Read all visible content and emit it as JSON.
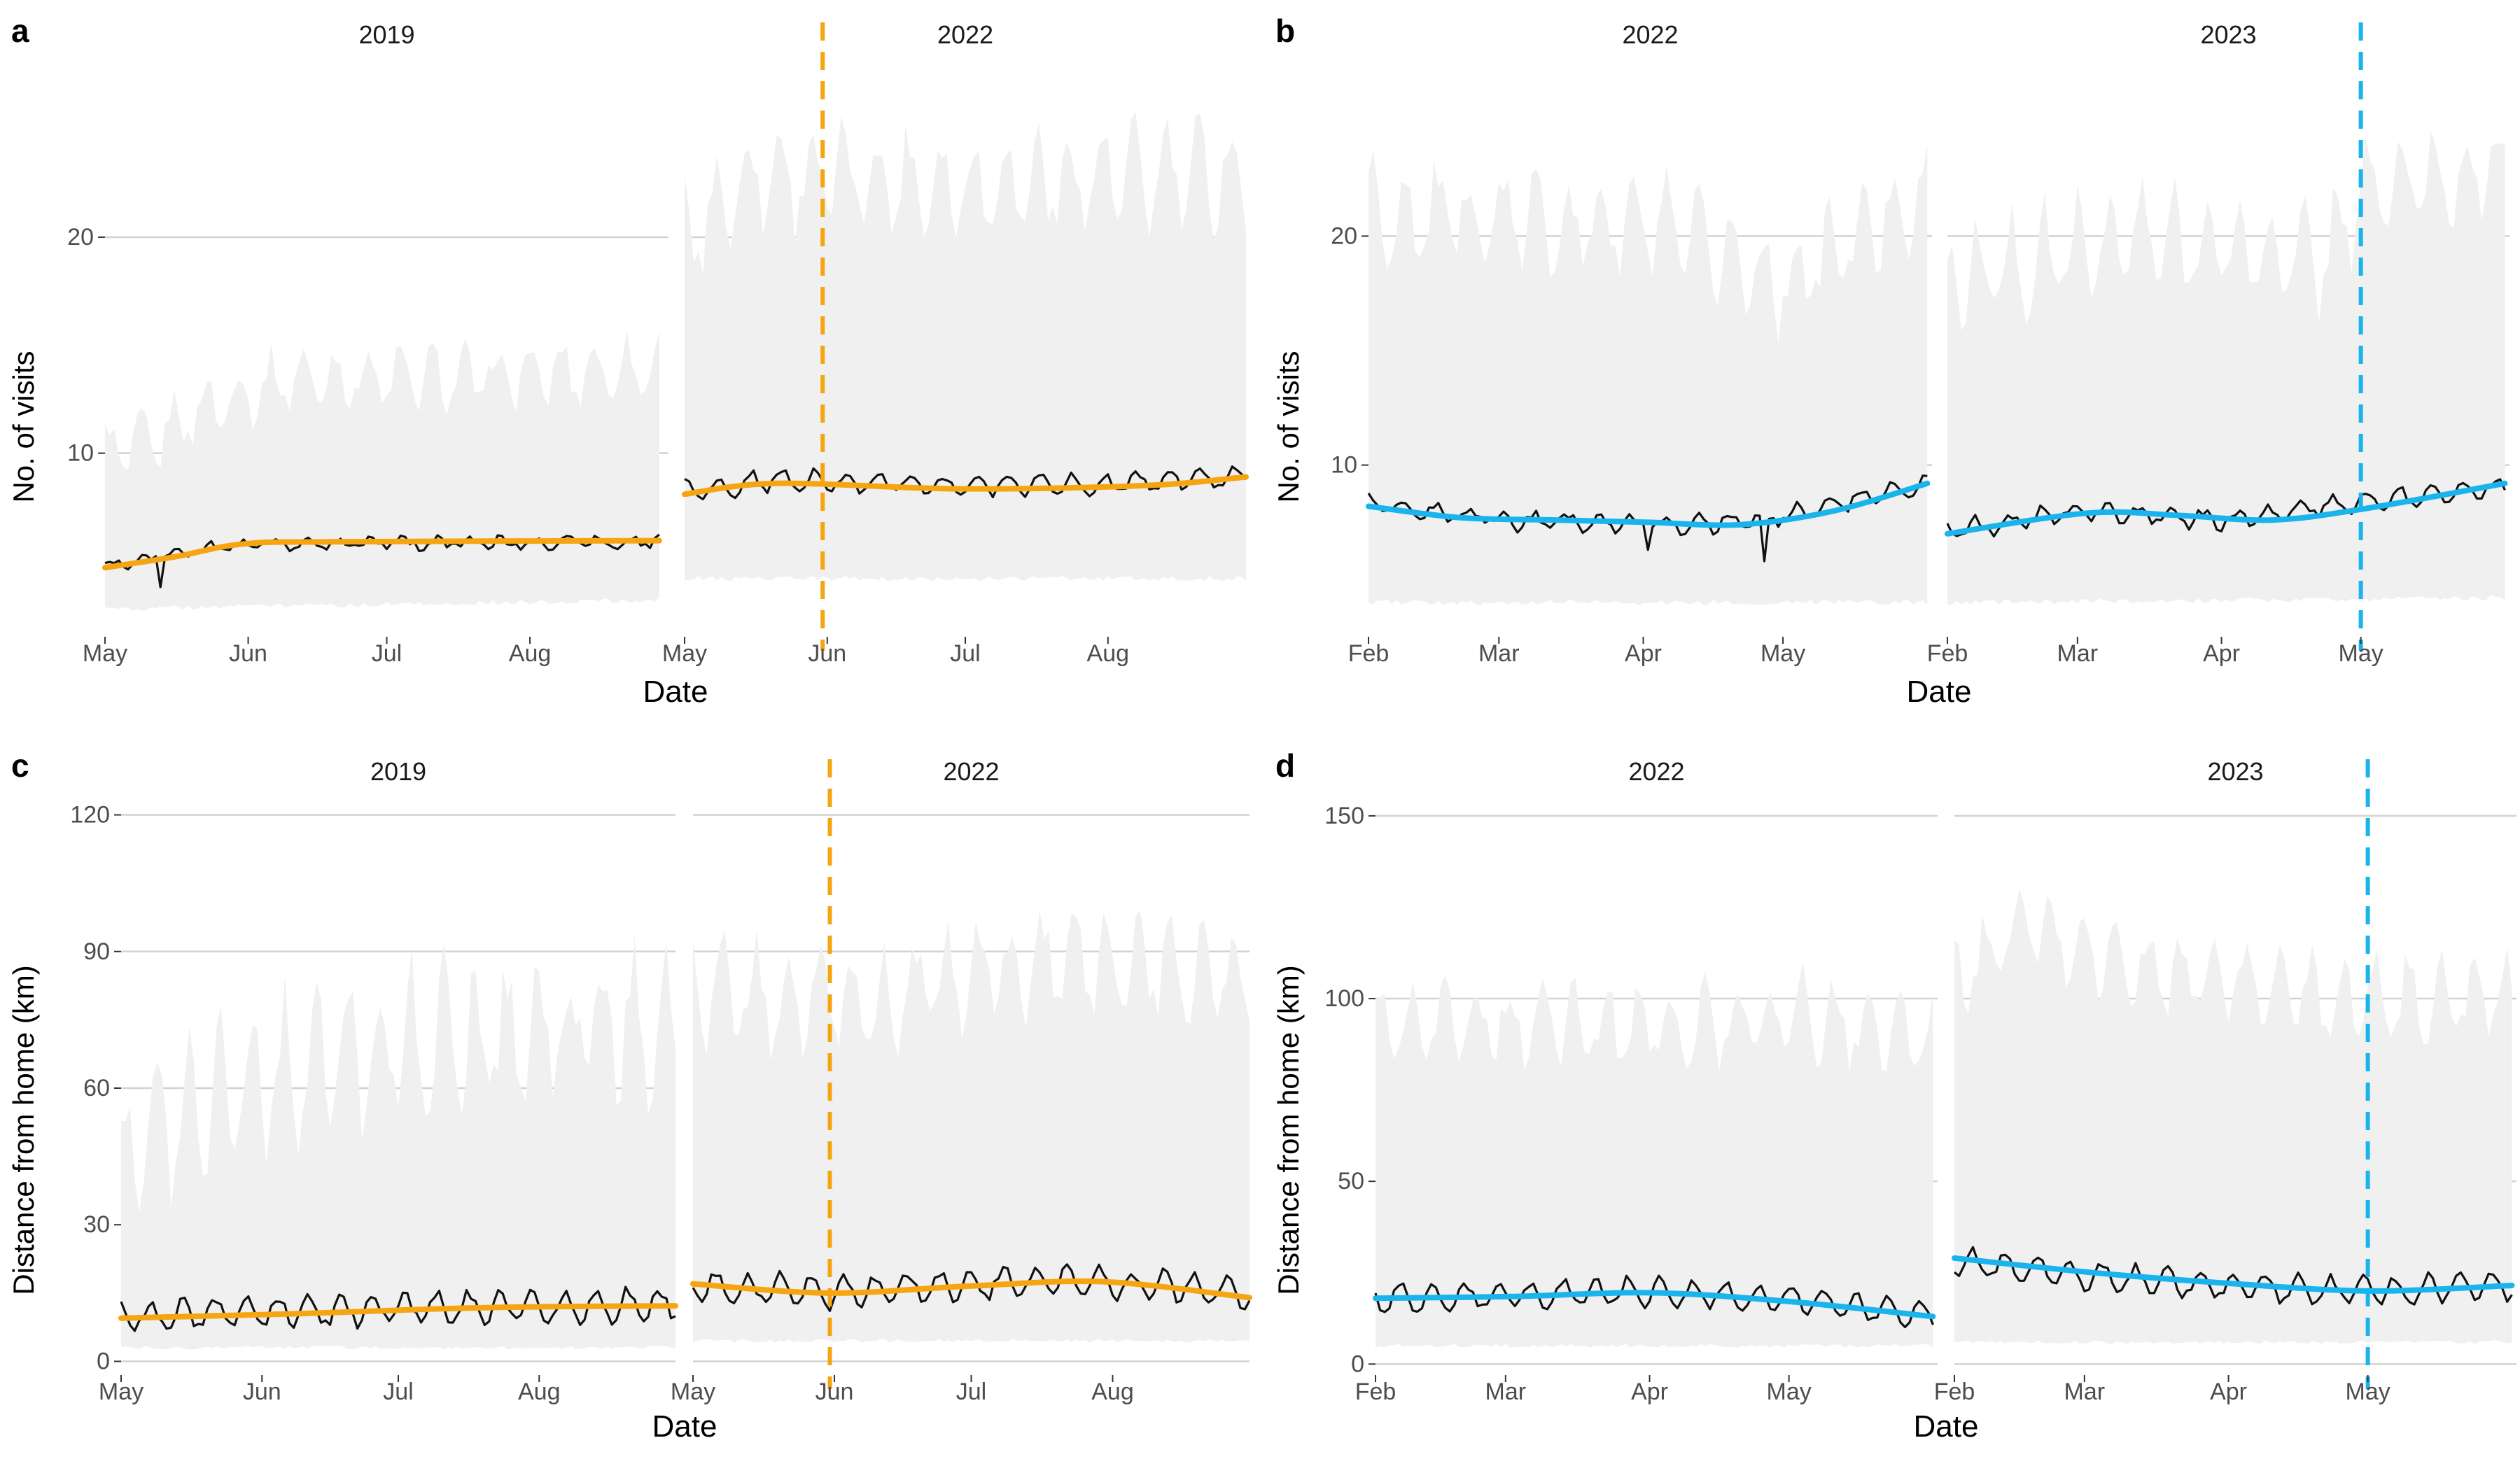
{
  "colors": {
    "orange": "#f5a511",
    "blue": "#1ab4ec",
    "band": "#f0f0f0",
    "grid": "#d2d2d2",
    "observed": "#111111",
    "axis_text": "#4d4d4d"
  },
  "chart_data": [
    {
      "panel_label": "a",
      "type": "line",
      "ylabel": "No. of visits",
      "xlabel": "Date",
      "ylim": [
        1.5,
        28
      ],
      "yticks": [
        10,
        20
      ],
      "grid": "horizontal major",
      "trend_color": "orange",
      "facets": [
        {
          "title": "2019",
          "xlim": [
            0,
            122
          ],
          "xticks": [
            {
              "label": "May",
              "x": 0
            },
            {
              "label": "Jun",
              "x": 31
            },
            {
              "label": "Jul",
              "x": 61
            },
            {
              "label": "Aug",
              "x": 92
            }
          ],
          "observed_series": {
            "start": 0,
            "end": 120,
            "base": [
              [
                0,
                4.8
              ],
              [
                30,
                5.8
              ],
              [
                120,
                5.9
              ]
            ],
            "amplitude": 0.22,
            "period": 7,
            "noise": 0.18,
            "dips": [
              [
                12,
                3.8
              ]
            ]
          },
          "trend": [
            [
              0,
              4.7
            ],
            [
              15,
              5.2
            ],
            [
              30,
              5.8
            ],
            [
              50,
              5.9
            ],
            [
              120,
              5.95
            ]
          ],
          "band_upper": {
            "base": [
              [
                0,
                10
              ],
              [
                10,
                10.5
              ],
              [
                20,
                12
              ],
              [
                40,
                13.5
              ],
              [
                80,
                13.5
              ],
              [
                120,
                14
              ]
            ],
            "amplitude": 1.3
          },
          "band_lower": {
            "base": [
              [
                0,
                2.8
              ],
              [
                120,
                3.2
              ]
            ],
            "amplitude": 0.12
          }
        },
        {
          "title": "2022",
          "xlim": [
            0,
            122
          ],
          "xticks": [
            {
              "label": "May",
              "x": 0
            },
            {
              "label": "Jun",
              "x": 31
            },
            {
              "label": "Jul",
              "x": 61
            },
            {
              "label": "Aug",
              "x": 92
            }
          ],
          "vline": 30,
          "observed_series": {
            "start": 0,
            "end": 122,
            "base": [
              [
                0,
                8.2
              ],
              [
                20,
                8.8
              ],
              [
                60,
                8.5
              ],
              [
                100,
                8.6
              ],
              [
                122,
                9.0
              ]
            ],
            "amplitude": 0.45,
            "period": 7,
            "noise": 0.2
          },
          "trend": [
            [
              0,
              8.1
            ],
            [
              20,
              8.6
            ],
            [
              60,
              8.35
            ],
            [
              100,
              8.5
            ],
            [
              122,
              8.9
            ]
          ],
          "band_upper": {
            "base": [
              [
                0,
                20
              ],
              [
                15,
                23
              ],
              [
                60,
                22.5
              ],
              [
                122,
                23
              ]
            ],
            "amplitude": 2.2
          },
          "band_lower": {
            "base": [
              [
                0,
                4.2
              ],
              [
                122,
                4.2
              ]
            ],
            "amplitude": 0.12
          }
        }
      ]
    },
    {
      "panel_label": "b",
      "type": "line",
      "ylabel": "No. of visits",
      "xlabel": "Date",
      "ylim": [
        2.5,
        27.5
      ],
      "yticks": [
        10,
        20
      ],
      "grid": "horizontal major",
      "trend_color": "blue",
      "facets": [
        {
          "title": "2022",
          "xlim": [
            0,
            121
          ],
          "xticks": [
            {
              "label": "Feb",
              "x": 0
            },
            {
              "label": "Mar",
              "x": 28
            },
            {
              "label": "Apr",
              "x": 59
            },
            {
              "label": "May",
              "x": 89
            }
          ],
          "observed_series": {
            "start": 0,
            "end": 120,
            "base": [
              [
                0,
                8.3
              ],
              [
                30,
                7.6
              ],
              [
                70,
                7.4
              ],
              [
                90,
                7.8
              ],
              [
                120,
                9.2
              ]
            ],
            "amplitude": 0.35,
            "period": 7,
            "noise": 0.2,
            "dips": [
              [
                60,
                6.3
              ],
              [
                85,
                5.8
              ]
            ]
          },
          "trend": [
            [
              0,
              8.2
            ],
            [
              20,
              7.7
            ],
            [
              40,
              7.6
            ],
            [
              60,
              7.5
            ],
            [
              80,
              7.4
            ],
            [
              100,
              8.0
            ],
            [
              120,
              9.2
            ]
          ],
          "band_upper": {
            "base": [
              [
                0,
                21
              ],
              [
                60,
                20.5
              ],
              [
                90,
                18
              ],
              [
                120,
                22
              ]
            ],
            "amplitude": 2.0
          },
          "band_lower": {
            "base": [
              [
                0,
                4.0
              ],
              [
                121,
                4.0
              ]
            ],
            "amplitude": 0.12
          }
        },
        {
          "title": "2023",
          "xlim": [
            0,
            121
          ],
          "xticks": [
            {
              "label": "Feb",
              "x": 0
            },
            {
              "label": "Mar",
              "x": 28
            },
            {
              "label": "Apr",
              "x": 59
            },
            {
              "label": "May",
              "x": 89
            }
          ],
          "vline": 89,
          "observed_series": {
            "start": 0,
            "end": 120,
            "base": [
              [
                0,
                7.1
              ],
              [
                30,
                8.0
              ],
              [
                60,
                7.6
              ],
              [
                90,
                8.4
              ],
              [
                120,
                9.1
              ]
            ],
            "amplitude": 0.35,
            "period": 7,
            "noise": 0.2
          },
          "trend": [
            [
              0,
              7.0
            ],
            [
              30,
              7.9
            ],
            [
              50,
              7.8
            ],
            [
              70,
              7.6
            ],
            [
              90,
              8.1
            ],
            [
              120,
              9.2
            ]
          ],
          "band_upper": {
            "base": [
              [
                0,
                18
              ],
              [
                40,
                20
              ],
              [
                80,
                19
              ],
              [
                90,
                22
              ],
              [
                120,
                23
              ]
            ],
            "amplitude": 2.0
          },
          "band_lower": {
            "base": [
              [
                0,
                4.0
              ],
              [
                121,
                4.2
              ]
            ],
            "amplitude": 0.12
          }
        }
      ]
    },
    {
      "panel_label": "c",
      "type": "line",
      "ylabel": "Distance from home (km)",
      "xlabel": "Date",
      "ylim": [
        -3,
        123
      ],
      "yticks": [
        0,
        30,
        60,
        90,
        120
      ],
      "grid": "horizontal major",
      "trend_color": "orange",
      "facets": [
        {
          "title": "2019",
          "xlim": [
            0,
            122
          ],
          "xticks": [
            {
              "label": "May",
              "x": 0
            },
            {
              "label": "Jun",
              "x": 31
            },
            {
              "label": "Jul",
              "x": 61
            },
            {
              "label": "Aug",
              "x": 92
            }
          ],
          "observed_series": {
            "start": 0,
            "end": 122,
            "base": [
              [
                0,
                10
              ],
              [
                60,
                11.5
              ],
              [
                122,
                12.5
              ]
            ],
            "amplitude": 3.2,
            "period": 7,
            "noise": 1.2
          },
          "trend": [
            [
              0,
              9.5
            ],
            [
              40,
              10.5
            ],
            [
              80,
              11.8
            ],
            [
              122,
              12.2
            ]
          ],
          "band_upper": {
            "base": [
              [
                0,
                45
              ],
              [
                20,
                60
              ],
              [
                60,
                70
              ],
              [
                122,
                75
              ]
            ],
            "amplitude": 14
          },
          "band_lower": {
            "base": [
              [
                0,
                3.0
              ],
              [
                122,
                3.0
              ]
            ],
            "amplitude": 0.4
          }
        },
        {
          "title": "2022",
          "xlim": [
            0,
            122
          ],
          "xticks": [
            {
              "label": "May",
              "x": 0
            },
            {
              "label": "Jun",
              "x": 31
            },
            {
              "label": "Jul",
              "x": 61
            },
            {
              "label": "Aug",
              "x": 92
            }
          ],
          "vline": 30,
          "observed_series": {
            "start": 0,
            "end": 122,
            "base": [
              [
                0,
                17
              ],
              [
                30,
                15
              ],
              [
                70,
                17.5
              ],
              [
                100,
                17
              ],
              [
                122,
                14.5
              ]
            ],
            "amplitude": 3.0,
            "period": 7,
            "noise": 1.2
          },
          "trend": [
            [
              0,
              17
            ],
            [
              30,
              15
            ],
            [
              60,
              16.5
            ],
            [
              90,
              17.5
            ],
            [
              122,
              14
            ]
          ],
          "band_upper": {
            "base": [
              [
                0,
                82
              ],
              [
                40,
                78
              ],
              [
                60,
                85
              ],
              [
                90,
                88
              ],
              [
                122,
                85
              ]
            ],
            "amplitude": 10
          },
          "band_lower": {
            "base": [
              [
                0,
                4.5
              ],
              [
                122,
                4.5
              ]
            ],
            "amplitude": 0.4
          }
        }
      ]
    },
    {
      "panel_label": "d",
      "type": "line",
      "ylabel": "Distance from home (km)",
      "xlabel": "Date",
      "ylim": [
        -3,
        154
      ],
      "yticks": [
        0,
        50,
        100,
        150
      ],
      "grid": "horizontal major",
      "trend_color": "blue",
      "facets": [
        {
          "title": "2022",
          "xlim": [
            0,
            121
          ],
          "xticks": [
            {
              "label": "Feb",
              "x": 0
            },
            {
              "label": "Mar",
              "x": 28
            },
            {
              "label": "Apr",
              "x": 59
            },
            {
              "label": "May",
              "x": 89
            }
          ],
          "observed_series": {
            "start": 0,
            "end": 120,
            "base": [
              [
                0,
                18
              ],
              [
                40,
                19
              ],
              [
                60,
                20
              ],
              [
                90,
                17.5
              ],
              [
                120,
                13
              ]
            ],
            "amplitude": 3.5,
            "period": 7,
            "noise": 1.2
          },
          "trend": [
            [
              0,
              18
            ],
            [
              30,
              18.5
            ],
            [
              60,
              19.5
            ],
            [
              90,
              17
            ],
            [
              120,
              13
            ]
          ],
          "band_upper": {
            "base": [
              [
                0,
                95
              ],
              [
                60,
                92
              ],
              [
                90,
                96
              ],
              [
                120,
                88
              ]
            ],
            "amplitude": 10
          },
          "band_lower": {
            "base": [
              [
                0,
                5
              ],
              [
                121,
                5
              ]
            ],
            "amplitude": 0.5
          }
        },
        {
          "title": "2023",
          "xlim": [
            0,
            121
          ],
          "xticks": [
            {
              "label": "Feb",
              "x": 0
            },
            {
              "label": "Mar",
              "x": 28
            },
            {
              "label": "Apr",
              "x": 59
            },
            {
              "label": "May",
              "x": 89
            }
          ],
          "vline": 89,
          "observed_series": {
            "start": 0,
            "end": 120,
            "base": [
              [
                0,
                28
              ],
              [
                30,
                24
              ],
              [
                60,
                21
              ],
              [
                90,
                20
              ],
              [
                120,
                21.5
              ]
            ],
            "amplitude": 3.5,
            "period": 7,
            "noise": 1.2
          },
          "trend": [
            [
              0,
              29
            ],
            [
              30,
              25
            ],
            [
              60,
              22
            ],
            [
              90,
              20
            ],
            [
              120,
              21.5
            ]
          ],
          "band_upper": {
            "base": [
              [
                0,
                105
              ],
              [
                15,
                120
              ],
              [
                40,
                108
              ],
              [
                90,
                100
              ],
              [
                120,
                100
              ]
            ],
            "amplitude": 10
          },
          "band_lower": {
            "base": [
              [
                0,
                6
              ],
              [
                121,
                6
              ]
            ],
            "amplitude": 0.5
          }
        }
      ]
    }
  ]
}
